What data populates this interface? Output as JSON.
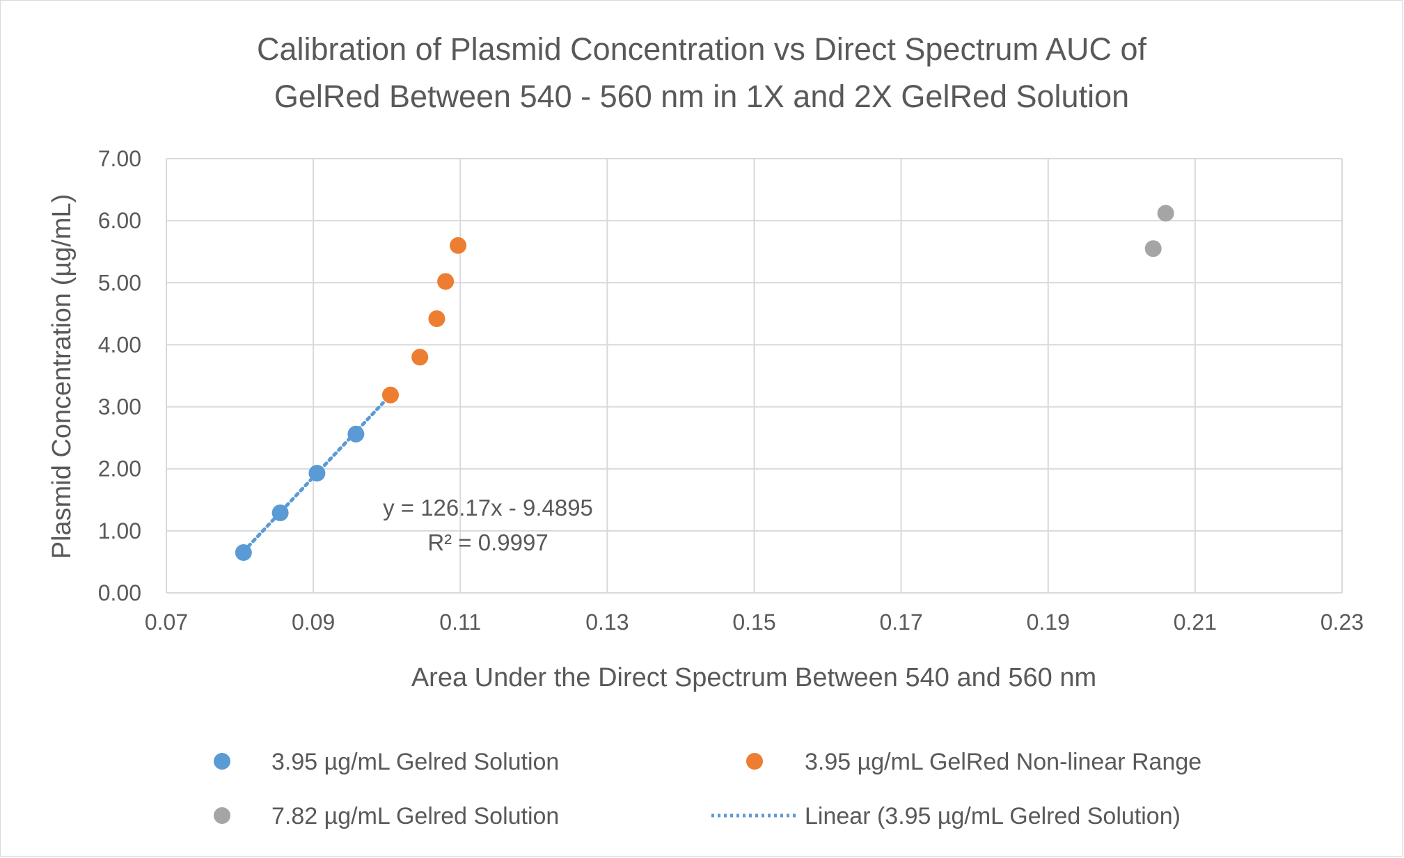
{
  "chart_data": {
    "type": "scatter",
    "title_lines": [
      "Calibration of Plasmid Concentration vs Direct Spectrum AUC of",
      "GelRed Between 540 - 560 nm in 1X and 2X GelRed Solution"
    ],
    "xlabel": "Area Under the Direct Spectrum Between 540 and 560 nm",
    "ylabel": "Plasmid Concentration (µg/mL)",
    "xlim": [
      0.07,
      0.23
    ],
    "ylim": [
      0,
      7
    ],
    "x_ticks": [
      0.07,
      0.09,
      0.11,
      0.13,
      0.15,
      0.17,
      0.19,
      0.21,
      0.23
    ],
    "x_tick_labels": [
      "0.07",
      "0.09",
      "0.11",
      "0.13",
      "0.15",
      "0.17",
      "0.19",
      "0.21",
      "0.23"
    ],
    "y_ticks": [
      0,
      1,
      2,
      3,
      4,
      5,
      6,
      7
    ],
    "y_tick_labels": [
      "0.00",
      "1.00",
      "2.00",
      "3.00",
      "4.00",
      "5.00",
      "6.00",
      "7.00"
    ],
    "grid": true,
    "legend_position": "bottom",
    "series": [
      {
        "name": "3.95 µg/mL Gelred Solution",
        "color": "#5b9bd5",
        "points": [
          {
            "x": 0.0805,
            "y": 0.65
          },
          {
            "x": 0.0855,
            "y": 1.29
          },
          {
            "x": 0.0905,
            "y": 1.93
          },
          {
            "x": 0.0958,
            "y": 2.56
          }
        ]
      },
      {
        "name": "3.95 µg/mL GelRed Non-linear Range",
        "color": "#ed7d31",
        "points": [
          {
            "x": 0.1005,
            "y": 3.19
          },
          {
            "x": 0.1045,
            "y": 3.8
          },
          {
            "x": 0.1068,
            "y": 4.42
          },
          {
            "x": 0.108,
            "y": 5.02
          },
          {
            "x": 0.1097,
            "y": 5.6
          }
        ]
      },
      {
        "name": "7.82 µg/mL Gelred Solution",
        "color": "#a5a5a5",
        "points": [
          {
            "x": 0.2043,
            "y": 5.55
          },
          {
            "x": 0.206,
            "y": 6.12
          }
        ]
      }
    ],
    "trendline": {
      "name": "Linear (3.95 µg/mL Gelred Solution)",
      "color": "#5b9bd5",
      "style": "dotted",
      "slope": 126.17,
      "intercept": -9.4895,
      "x_range": [
        0.0805,
        0.0995
      ]
    },
    "annotations": [
      {
        "text": "y = 126.17x - 9.4895"
      },
      {
        "text": "R² = 0.9997"
      }
    ]
  }
}
